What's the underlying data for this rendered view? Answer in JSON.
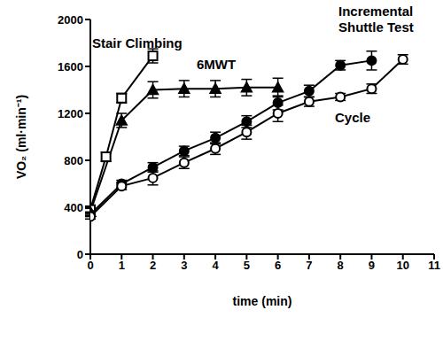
{
  "chart_data": {
    "type": "line",
    "x_label": "time (min)",
    "y_label": "VO₂ (ml·min⁻¹)",
    "xlim": [
      0,
      11
    ],
    "xticks": [
      0,
      1,
      2,
      3,
      4,
      5,
      6,
      7,
      8,
      9,
      10,
      11
    ],
    "ylim": [
      0,
      2000
    ],
    "yticks": [
      0,
      400,
      800,
      1200,
      1600,
      2000
    ],
    "grid": false,
    "series": [
      {
        "name": "Stair Climbing",
        "color": "#000000",
        "marker": "square-open",
        "x": [
          0,
          0.5,
          1,
          2
        ],
        "values": [
          380,
          830,
          1330,
          1690
        ],
        "errors": [
          30,
          40,
          40,
          60
        ]
      },
      {
        "name": "6MWT",
        "color": "#000000",
        "marker": "triangle",
        "x": [
          0,
          1,
          2,
          3,
          4,
          5,
          6
        ],
        "values": [
          360,
          1140,
          1400,
          1410,
          1410,
          1420,
          1420
        ],
        "errors": [
          30,
          60,
          70,
          70,
          70,
          70,
          80
        ]
      },
      {
        "name": "Incremental Shuttle Test",
        "color": "#000000",
        "marker": "circle",
        "x": [
          0,
          1,
          2,
          3,
          4,
          5,
          6,
          7,
          8,
          9
        ],
        "values": [
          340,
          600,
          740,
          880,
          990,
          1130,
          1290,
          1390,
          1610,
          1650
        ],
        "errors": [
          20,
          30,
          40,
          40,
          50,
          50,
          60,
          50,
          40,
          80
        ]
      },
      {
        "name": "Cycle",
        "color": "#000000",
        "marker": "circle-open",
        "x": [
          0,
          1,
          2,
          3,
          4,
          5,
          6,
          7,
          8,
          9,
          10
        ],
        "values": [
          320,
          580,
          650,
          780,
          900,
          1040,
          1200,
          1300,
          1340,
          1410,
          1660
        ],
        "errors": [
          20,
          30,
          60,
          50,
          50,
          60,
          70,
          40,
          30,
          40,
          40
        ]
      }
    ]
  }
}
